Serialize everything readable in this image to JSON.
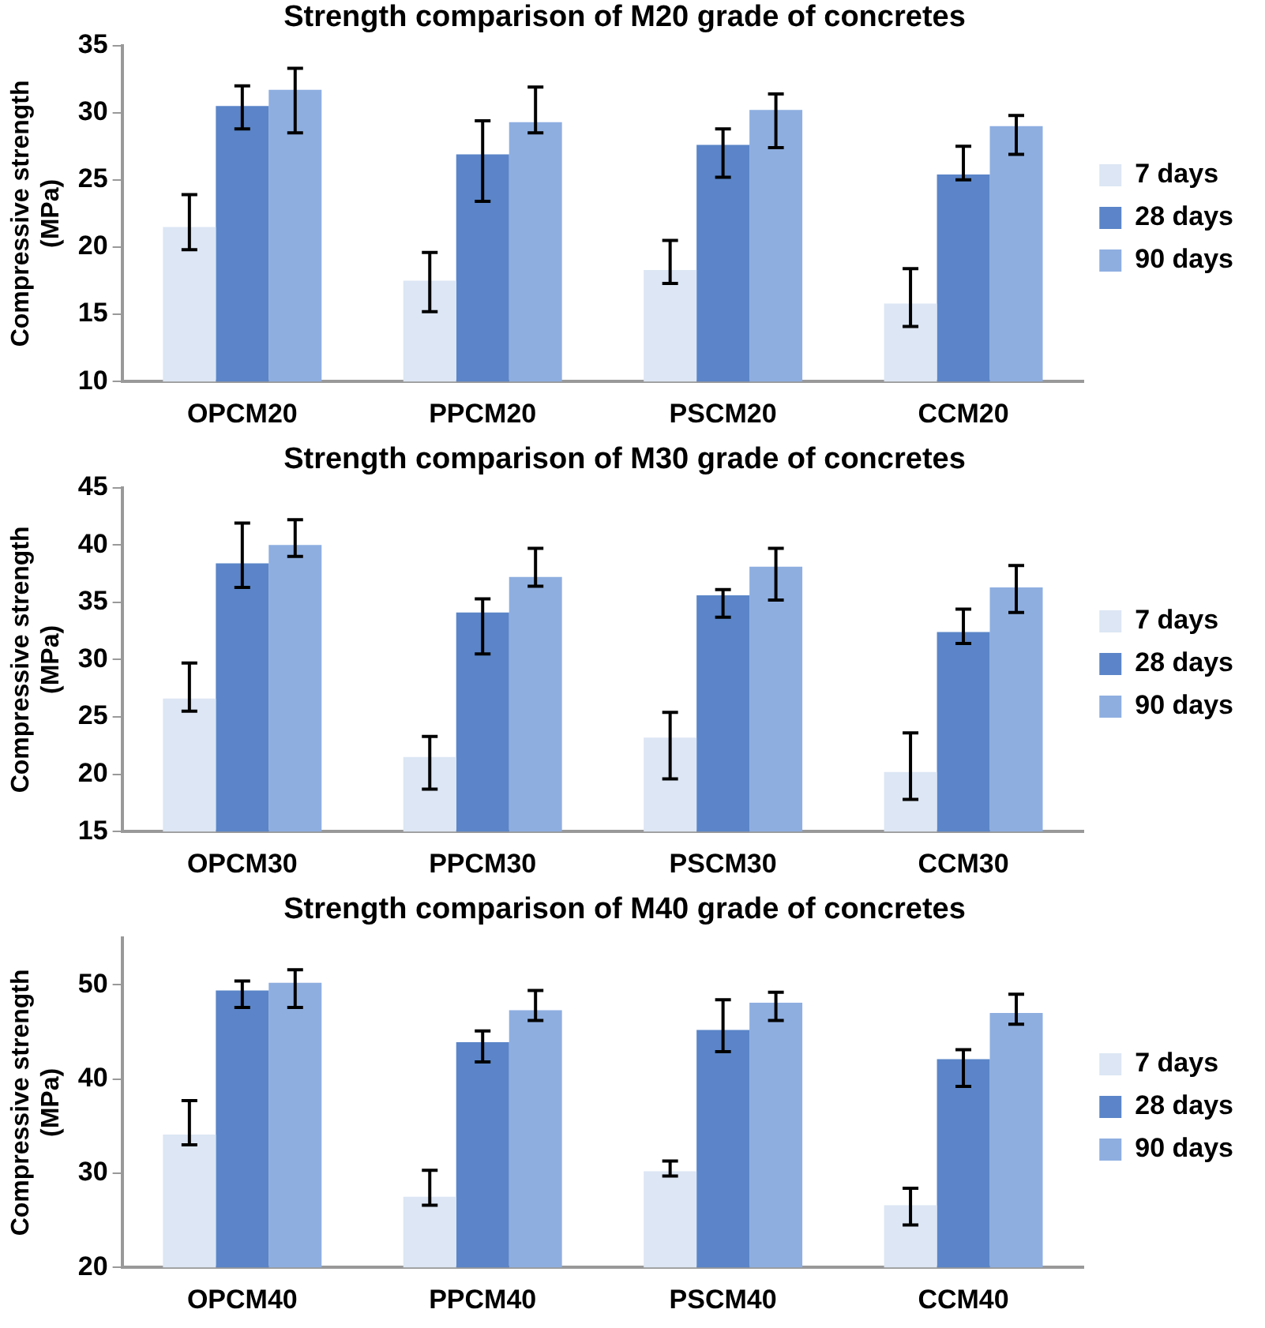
{
  "chart_data": [
    {
      "type": "bar",
      "title": "Strength comparison of M20 grade of concretes",
      "ylabel": "Compressive strength (MPa)",
      "categories": [
        "OPCM20",
        "PPCM20",
        "PSCM20",
        "CCM20"
      ],
      "ylim": [
        10,
        35
      ],
      "yticks": [
        10,
        15,
        20,
        25,
        30,
        35
      ],
      "grid": false,
      "legend": "right",
      "series": [
        {
          "name": "7 days",
          "color": "#dce6f4",
          "values": [
            21.5,
            17.5,
            18.3,
            15.8
          ],
          "errors": [
            [
              19.8,
              23.9
            ],
            [
              15.2,
              19.6
            ],
            [
              17.3,
              20.5
            ],
            [
              14.1,
              18.4
            ]
          ]
        },
        {
          "name": "28 days",
          "color": "#5b85c8",
          "values": [
            30.5,
            26.9,
            27.6,
            25.4
          ],
          "errors": [
            [
              28.8,
              32
            ],
            [
              23.4,
              29.4
            ],
            [
              25.2,
              28.8
            ],
            [
              25,
              27.5
            ]
          ]
        },
        {
          "name": "90 days",
          "color": "#8eaee0",
          "values": [
            31.7,
            29.3,
            30.2,
            29
          ],
          "errors": [
            [
              28.5,
              33.3
            ],
            [
              28.5,
              31.9
            ],
            [
              27.4,
              31.4
            ],
            [
              26.9,
              29.8
            ]
          ]
        }
      ]
    },
    {
      "type": "bar",
      "title": "Strength comparison of M30 grade of concretes",
      "ylabel": "Compressive strength (MPa)",
      "categories": [
        "OPCM30",
        "PPCM30",
        "PSCM30",
        "CCM30"
      ],
      "ylim": [
        15,
        45
      ],
      "yticks": [
        15,
        20,
        25,
        30,
        35,
        40,
        45
      ],
      "grid": false,
      "legend": "right",
      "series": [
        {
          "name": "7 days",
          "color": "#dce6f4",
          "values": [
            26.6,
            21.5,
            23.2,
            20.2
          ],
          "errors": [
            [
              25.5,
              29.7
            ],
            [
              18.7,
              23.3
            ],
            [
              19.6,
              25.4
            ],
            [
              17.8,
              23.6
            ]
          ]
        },
        {
          "name": "28 days",
          "color": "#5b85c8",
          "values": [
            38.4,
            34.1,
            35.6,
            32.4
          ],
          "errors": [
            [
              36.3,
              41.9
            ],
            [
              30.5,
              35.3
            ],
            [
              33.7,
              36.1
            ],
            [
              31.4,
              34.4
            ]
          ]
        },
        {
          "name": "90 days",
          "color": "#8eaee0",
          "values": [
            40,
            37.2,
            38.1,
            36.3
          ],
          "errors": [
            [
              39,
              42.2
            ],
            [
              36.4,
              39.7
            ],
            [
              35.2,
              39.7
            ],
            [
              34.1,
              38.2
            ]
          ]
        }
      ]
    },
    {
      "type": "bar",
      "title": "Strength comparison of M40 grade of concretes",
      "ylabel": "Compressive strength (MPa)",
      "categories": [
        "OPCM40",
        "PPCM40",
        "PSCM40",
        "CCM40"
      ],
      "ylim": [
        20,
        55
      ],
      "yticks": [
        20,
        30,
        40,
        50
      ],
      "grid": false,
      "legend": "right",
      "series": [
        {
          "name": "7 days",
          "color": "#dce6f4",
          "values": [
            34.1,
            27.5,
            30.2,
            26.6
          ],
          "errors": [
            [
              33,
              37.7
            ],
            [
              26.6,
              30.3
            ],
            [
              29.7,
              31.3
            ],
            [
              24.5,
              28.4
            ]
          ]
        },
        {
          "name": "28 days",
          "color": "#5b85c8",
          "values": [
            49.4,
            43.9,
            45.2,
            42.1
          ],
          "errors": [
            [
              47.6,
              50.4
            ],
            [
              41.8,
              45.1
            ],
            [
              42.9,
              48.4
            ],
            [
              39.2,
              43.1
            ]
          ]
        },
        {
          "name": "90 days",
          "color": "#8eaee0",
          "values": [
            50.2,
            47.3,
            48.1,
            47
          ],
          "errors": [
            [
              47.6,
              51.6
            ],
            [
              46.2,
              49.4
            ],
            [
              46.2,
              49.2
            ],
            [
              45.8,
              49
            ]
          ]
        }
      ]
    }
  ]
}
